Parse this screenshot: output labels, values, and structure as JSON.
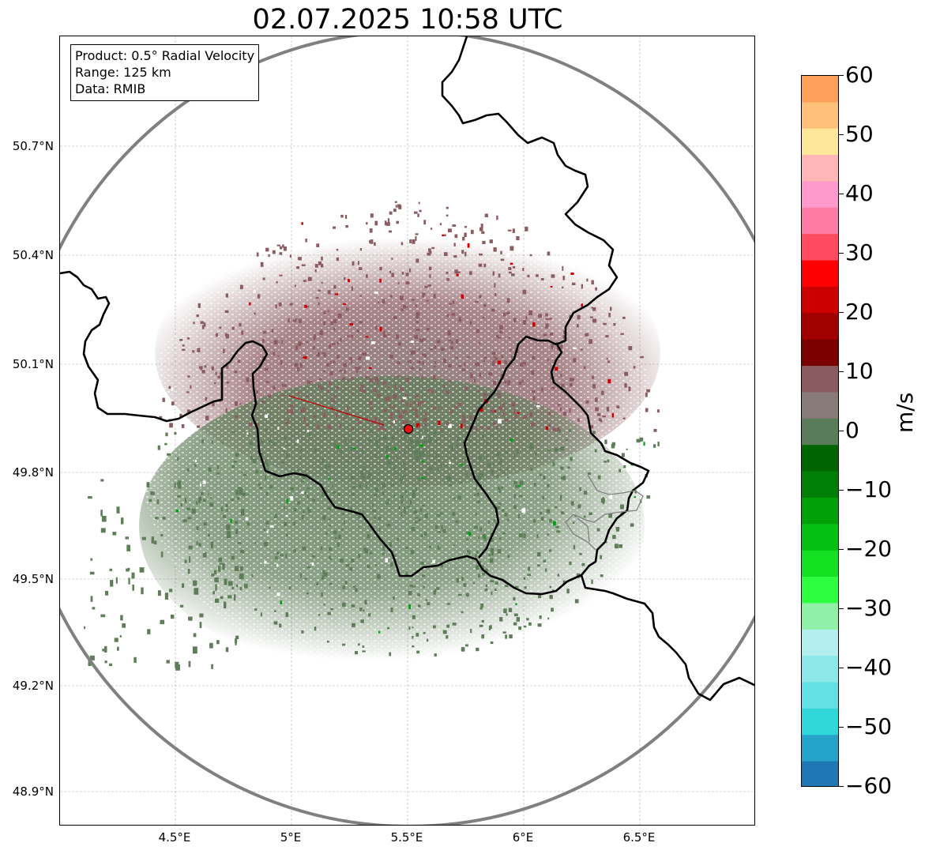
{
  "title": "02.07.2025 10:58 UTC",
  "info": {
    "product": "Product: 0.5° Radial Velocity",
    "range": "Range: 125 km",
    "data": "Data: RMIB"
  },
  "lat_ticks": [
    "50.7°N",
    "50.4°N",
    "50.1°N",
    "49.8°N",
    "49.5°N",
    "49.2°N",
    "48.9°N"
  ],
  "lon_ticks": [
    "4.5°E",
    "5°E",
    "5.5°E",
    "6°E",
    "6.5°E"
  ],
  "colorbar": {
    "unit": "m/s",
    "ticks": [
      "60",
      "50",
      "40",
      "30",
      "20",
      "10",
      "0",
      "−10",
      "−20",
      "−30",
      "−40",
      "−50",
      "−60"
    ],
    "min": -60,
    "max": 60,
    "colors": [
      "#1f77b4",
      "#25a3c9",
      "#2fd7da",
      "#62e2e3",
      "#8ce8e8",
      "#b3efef",
      "#90f0a8",
      "#2bff40",
      "#12e020",
      "#05c010",
      "#02a008",
      "#017e05",
      "#006400",
      "#5a7c59",
      "#877a78",
      "#895c61",
      "#7a0000",
      "#a00000",
      "#cc0000",
      "#ff0000",
      "#ff4a60",
      "#ff7aa5",
      "#ff99cc",
      "#ffb6b6",
      "#ffe79a",
      "#ffc07a",
      "#ffa05a"
    ]
  },
  "map": {
    "radar_site": "radar-site-marker",
    "range_ring_color": "#808080",
    "border_color": "#000000",
    "positive_color": "#8b5c62",
    "negative_color": "#5e7d58"
  }
}
